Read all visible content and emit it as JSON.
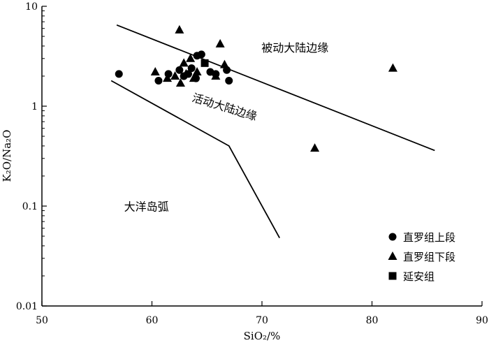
{
  "chart_data": {
    "type": "scatter",
    "title": "",
    "xlabel": "SiO₂/%",
    "ylabel": "K₂O/Na₂O",
    "xlim": [
      50,
      90
    ],
    "ylim": [
      0.01,
      10
    ],
    "yscale": "log",
    "grid": false,
    "legend_position": "bottom-right",
    "x_ticks": [
      50,
      60,
      70,
      80,
      90
    ],
    "y_ticks": [
      0.01,
      0.1,
      1,
      10
    ],
    "x_tick_labels": [
      "50",
      "60",
      "70",
      "80",
      "90"
    ],
    "y_tick_labels": [
      "0.01",
      "0.1",
      "1",
      "10"
    ],
    "series": [
      {
        "name": "直罗组上段",
        "marker": "circle",
        "color": "#000000",
        "points": [
          [
            57.0,
            2.1
          ],
          [
            60.6,
            1.8
          ],
          [
            61.5,
            2.1
          ],
          [
            62.5,
            2.3
          ],
          [
            62.9,
            2.0
          ],
          [
            63.3,
            2.1
          ],
          [
            63.6,
            2.4
          ],
          [
            64.0,
            1.9
          ],
          [
            64.1,
            3.2
          ],
          [
            64.5,
            3.3
          ],
          [
            65.3,
            2.2
          ],
          [
            65.8,
            2.1
          ],
          [
            66.8,
            2.3
          ],
          [
            67.0,
            1.8
          ]
        ]
      },
      {
        "name": "直罗组下段",
        "marker": "triangle",
        "color": "#000000",
        "points": [
          [
            60.3,
            2.2
          ],
          [
            61.4,
            1.9
          ],
          [
            62.1,
            2.0
          ],
          [
            62.5,
            5.8
          ],
          [
            62.6,
            1.7
          ],
          [
            62.9,
            2.7
          ],
          [
            63.1,
            2.1
          ],
          [
            63.5,
            3.0
          ],
          [
            63.8,
            1.9
          ],
          [
            64.1,
            2.2
          ],
          [
            65.8,
            2.0
          ],
          [
            66.2,
            4.2
          ],
          [
            66.6,
            2.6
          ],
          [
            74.8,
            0.38
          ],
          [
            81.9,
            2.4
          ]
        ]
      },
      {
        "name": "延安组",
        "marker": "square",
        "color": "#000000",
        "points": [
          [
            64.8,
            2.7
          ]
        ]
      }
    ],
    "boundary_lines": [
      {
        "points": [
          [
            56.8,
            6.5
          ],
          [
            85.7,
            0.36
          ]
        ]
      },
      {
        "points": [
          [
            56.3,
            1.8
          ],
          [
            67.0,
            0.4
          ],
          [
            71.6,
            0.048
          ]
        ]
      }
    ],
    "annotations": [
      {
        "text": "被动大陆边缘",
        "x": 73,
        "y": 3.5,
        "rotate": 0
      },
      {
        "text": "活动大陆边缘",
        "x": 66.5,
        "y": 0.9,
        "rotate": 17
      },
      {
        "text": "大洋岛弧",
        "x": 59.5,
        "y": 0.09,
        "rotate": 0
      }
    ]
  }
}
